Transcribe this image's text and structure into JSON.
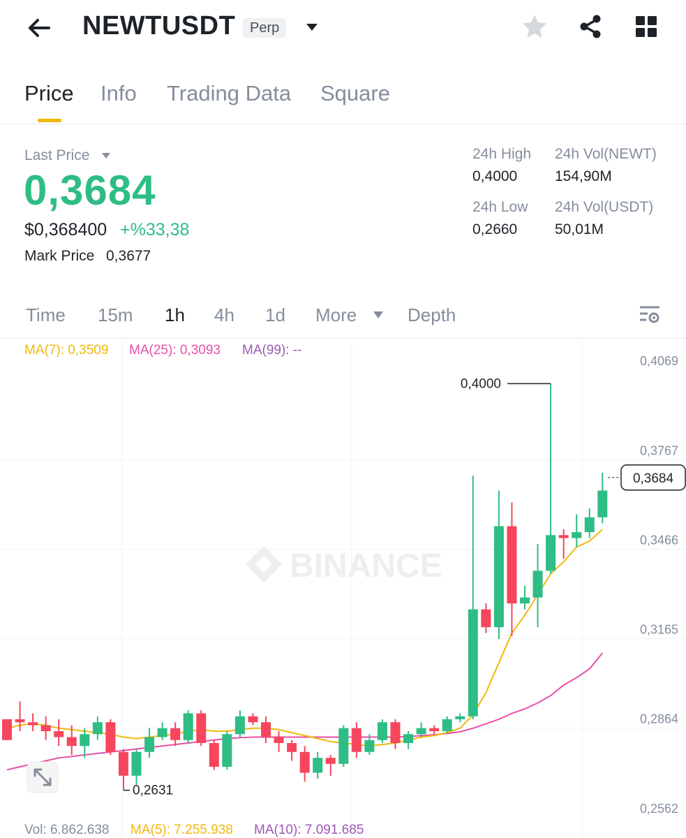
{
  "header": {
    "symbol": "NEWTUSDT",
    "badge": "Perp",
    "icons": [
      "back-arrow-icon",
      "caret-down-icon",
      "star-icon",
      "share-icon",
      "grid-icon"
    ]
  },
  "tabs": [
    {
      "label": "Price",
      "active": true
    },
    {
      "label": "Info",
      "active": false
    },
    {
      "label": "Trading Data",
      "active": false
    },
    {
      "label": "Square",
      "active": false
    }
  ],
  "summary": {
    "last_price_label": "Last Price",
    "last_price": "0,3684",
    "usd_price": "$0,368400",
    "change": "+%33,38",
    "mark_label": "Mark Price",
    "mark_value": "0,3677"
  },
  "stats": {
    "high_label": "24h High",
    "high_value": "0,4000",
    "low_label": "24h Low",
    "low_value": "0,2660",
    "vol_base_label": "24h Vol(NEWT)",
    "vol_base_value": "154,90M",
    "vol_quote_label": "24h Vol(USDT)",
    "vol_quote_value": "50,01M"
  },
  "intervals": [
    {
      "label": "Time",
      "active": false
    },
    {
      "label": "15m",
      "active": false
    },
    {
      "label": "1h",
      "active": true
    },
    {
      "label": "4h",
      "active": false
    },
    {
      "label": "1d",
      "active": false
    },
    {
      "label": "More",
      "active": false
    },
    {
      "label": "Depth",
      "active": false
    }
  ],
  "ma": {
    "ma7": "MA(7): 0,3509",
    "ma25": "MA(25): 0,3093",
    "ma99": "MA(99): --"
  },
  "volume": {
    "vol": "Vol: 6.862.638",
    "ma5": "MA(5): 7.255.938",
    "ma10": "MA(10): 7.091.685"
  },
  "colors": {
    "up": "#2ebd85",
    "down": "#f6465d",
    "ma7": "#f0b90b",
    "ma25": "#e84fa8",
    "ma99": "#9b59b6",
    "accent": "#f0b90b"
  },
  "chart_data": {
    "type": "candlestick",
    "y_axis_ticks": [
      "0,4069",
      "0,3767",
      "0,3466",
      "0,3165",
      "0,2864",
      "0,2562"
    ],
    "y_tick_values": [
      0.4069,
      0.3767,
      0.3466,
      0.3165,
      0.2864,
      0.2562
    ],
    "ylim": [
      0.2562,
      0.4069
    ],
    "current_price_label": "0,3684",
    "current_price": 0.3684,
    "high_label": "0,4000",
    "high_value": 0.4,
    "low_label": "0,2631",
    "low_value": 0.2631,
    "watermark": "BINANCE",
    "candles": [
      [
        0.287,
        0.286,
        0.28,
        0.28
      ],
      [
        0.287,
        0.293,
        0.283,
        0.286
      ],
      [
        0.286,
        0.289,
        0.283,
        0.285
      ],
      [
        0.285,
        0.288,
        0.28,
        0.283
      ],
      [
        0.283,
        0.287,
        0.278,
        0.281
      ],
      [
        0.281,
        0.285,
        0.275,
        0.278
      ],
      [
        0.278,
        0.284,
        0.274,
        0.282
      ],
      [
        0.282,
        0.288,
        0.28,
        0.286
      ],
      [
        0.286,
        0.287,
        0.275,
        0.276
      ],
      [
        0.276,
        0.277,
        0.2631,
        0.268
      ],
      [
        0.268,
        0.277,
        0.265,
        0.276
      ],
      [
        0.276,
        0.284,
        0.274,
        0.281
      ],
      [
        0.281,
        0.286,
        0.28,
        0.284
      ],
      [
        0.284,
        0.286,
        0.278,
        0.28
      ],
      [
        0.28,
        0.29,
        0.279,
        0.289
      ],
      [
        0.289,
        0.29,
        0.278,
        0.279
      ],
      [
        0.279,
        0.28,
        0.27,
        0.271
      ],
      [
        0.271,
        0.283,
        0.27,
        0.282
      ],
      [
        0.282,
        0.29,
        0.281,
        0.288
      ],
      [
        0.288,
        0.289,
        0.285,
        0.286
      ],
      [
        0.286,
        0.288,
        0.279,
        0.281
      ],
      [
        0.281,
        0.283,
        0.276,
        0.279
      ],
      [
        0.279,
        0.28,
        0.273,
        0.276
      ],
      [
        0.276,
        0.278,
        0.266,
        0.269
      ],
      [
        0.269,
        0.276,
        0.267,
        0.274
      ],
      [
        0.274,
        0.275,
        0.268,
        0.272
      ],
      [
        0.272,
        0.285,
        0.271,
        0.284
      ],
      [
        0.284,
        0.286,
        0.274,
        0.276
      ],
      [
        0.276,
        0.282,
        0.275,
        0.28
      ],
      [
        0.28,
        0.287,
        0.279,
        0.286
      ],
      [
        0.286,
        0.287,
        0.277,
        0.279
      ],
      [
        0.279,
        0.283,
        0.277,
        0.282
      ],
      [
        0.282,
        0.286,
        0.281,
        0.284
      ],
      [
        0.284,
        0.285,
        0.282,
        0.283
      ],
      [
        0.283,
        0.288,
        0.282,
        0.287
      ],
      [
        0.287,
        0.289,
        0.286,
        0.288
      ],
      [
        0.288,
        0.369,
        0.287,
        0.324
      ],
      [
        0.324,
        0.326,
        0.316,
        0.318
      ],
      [
        0.318,
        0.364,
        0.314,
        0.352
      ],
      [
        0.352,
        0.36,
        0.315,
        0.326
      ],
      [
        0.326,
        0.332,
        0.324,
        0.328
      ],
      [
        0.328,
        0.346,
        0.318,
        0.337
      ],
      [
        0.337,
        0.4,
        0.336,
        0.349
      ],
      [
        0.349,
        0.351,
        0.341,
        0.348
      ],
      [
        0.348,
        0.356,
        0.345,
        0.35
      ],
      [
        0.35,
        0.358,
        0.348,
        0.355
      ],
      [
        0.355,
        0.37,
        0.353,
        0.364
      ]
    ],
    "ma7": [
      0.284,
      0.285,
      0.2855,
      0.285,
      0.284,
      0.2835,
      0.283,
      0.2825,
      0.282,
      0.281,
      0.2805,
      0.281,
      0.2815,
      0.282,
      0.283,
      0.2835,
      0.283,
      0.283,
      0.2835,
      0.284,
      0.284,
      0.2835,
      0.2825,
      0.2815,
      0.2805,
      0.2795,
      0.279,
      0.2785,
      0.278,
      0.2785,
      0.279,
      0.28,
      0.281,
      0.2815,
      0.2825,
      0.284,
      0.2885,
      0.296,
      0.306,
      0.316,
      0.322,
      0.329,
      0.336,
      0.34,
      0.345,
      0.347,
      0.3509
    ],
    "ma25": [
      0.27,
      0.271,
      0.272,
      0.273,
      0.274,
      0.2745,
      0.275,
      0.2755,
      0.276,
      0.2765,
      0.277,
      0.2775,
      0.278,
      0.2785,
      0.279,
      0.2795,
      0.28,
      0.2805,
      0.2808,
      0.281,
      0.281,
      0.281,
      0.281,
      0.281,
      0.281,
      0.281,
      0.281,
      0.281,
      0.281,
      0.281,
      0.281,
      0.2812,
      0.2815,
      0.2818,
      0.2822,
      0.2828,
      0.284,
      0.2855,
      0.287,
      0.289,
      0.2905,
      0.2925,
      0.295,
      0.2985,
      0.301,
      0.304,
      0.3093
    ]
  }
}
